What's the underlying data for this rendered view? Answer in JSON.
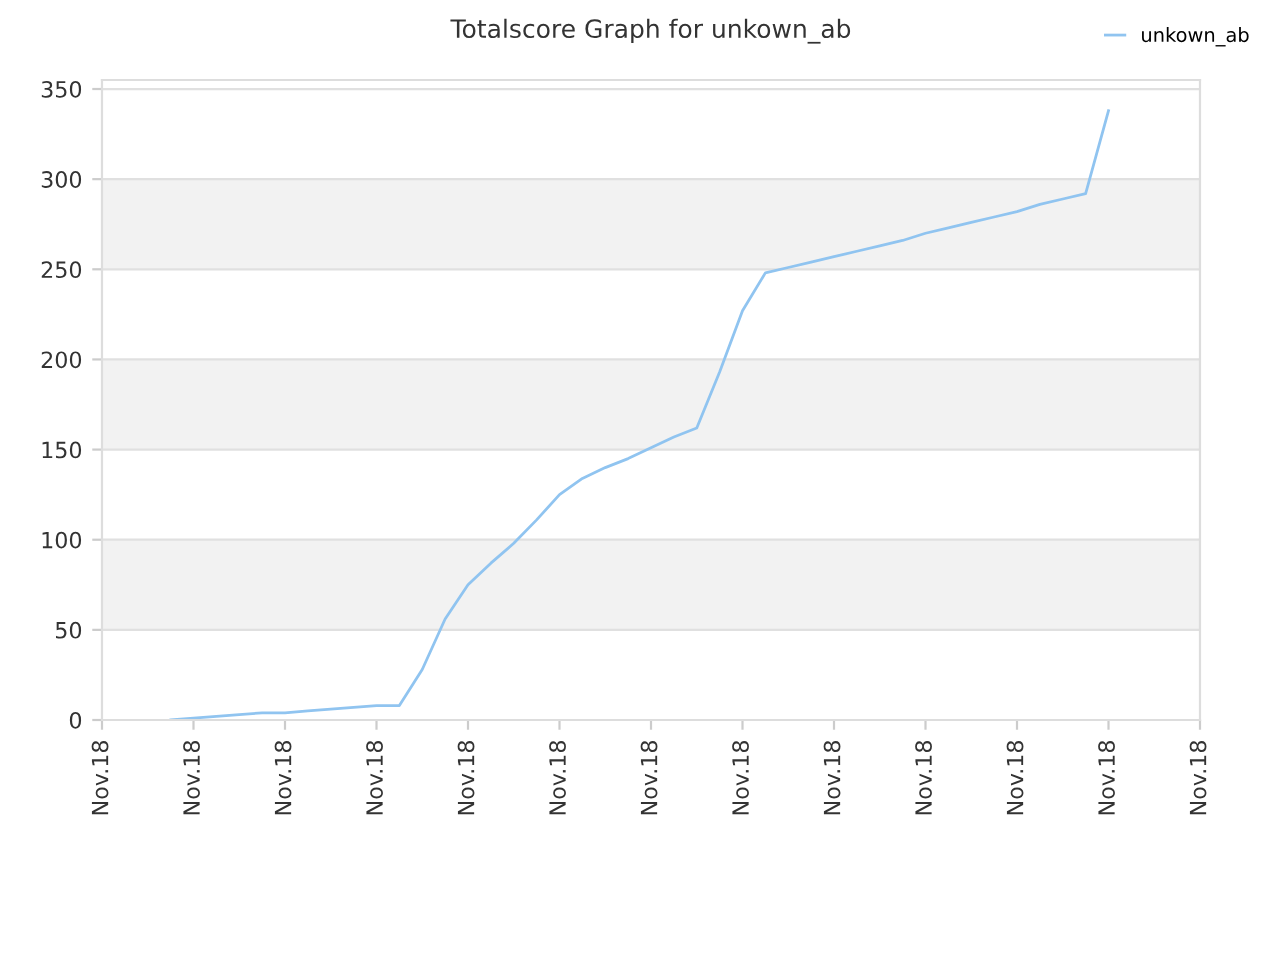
{
  "chart_data": {
    "type": "line",
    "title": "Totalscore Graph for unkown_ab",
    "categories": [
      "Nov.18",
      null,
      null,
      null,
      "Nov.18",
      null,
      null,
      null,
      "Nov.18",
      null,
      null,
      null,
      "Nov.18",
      null,
      null,
      null,
      "Nov.18",
      null,
      null,
      null,
      "Nov.18",
      null,
      null,
      null,
      "Nov.18",
      null,
      null,
      null,
      "Nov.18",
      null,
      null,
      null,
      "Nov.18",
      null,
      null,
      null,
      "Nov.18",
      null,
      null,
      null,
      "Nov.18",
      null,
      null,
      null,
      "Nov.18",
      null,
      null,
      null,
      "Nov.18"
    ],
    "series": [
      {
        "name": "unkown_ab",
        "color": "#90c4f0",
        "values": [
          null,
          null,
          null,
          0,
          1,
          2,
          3,
          4,
          4,
          5,
          6,
          7,
          8,
          8,
          28,
          56,
          75,
          87,
          98,
          111,
          125,
          134,
          140,
          145,
          151,
          157,
          162,
          193,
          227,
          248,
          251,
          254,
          257,
          260,
          263,
          266,
          270,
          273,
          276,
          279,
          282,
          286,
          289,
          292,
          338,
          null,
          null,
          null,
          null
        ]
      }
    ],
    "ylim": [
      0,
      355
    ],
    "yticks": [
      0,
      50,
      100,
      150,
      200,
      250,
      300,
      350
    ],
    "grid": "y",
    "legend": "top right",
    "marker": "none",
    "line_style": "solid"
  }
}
